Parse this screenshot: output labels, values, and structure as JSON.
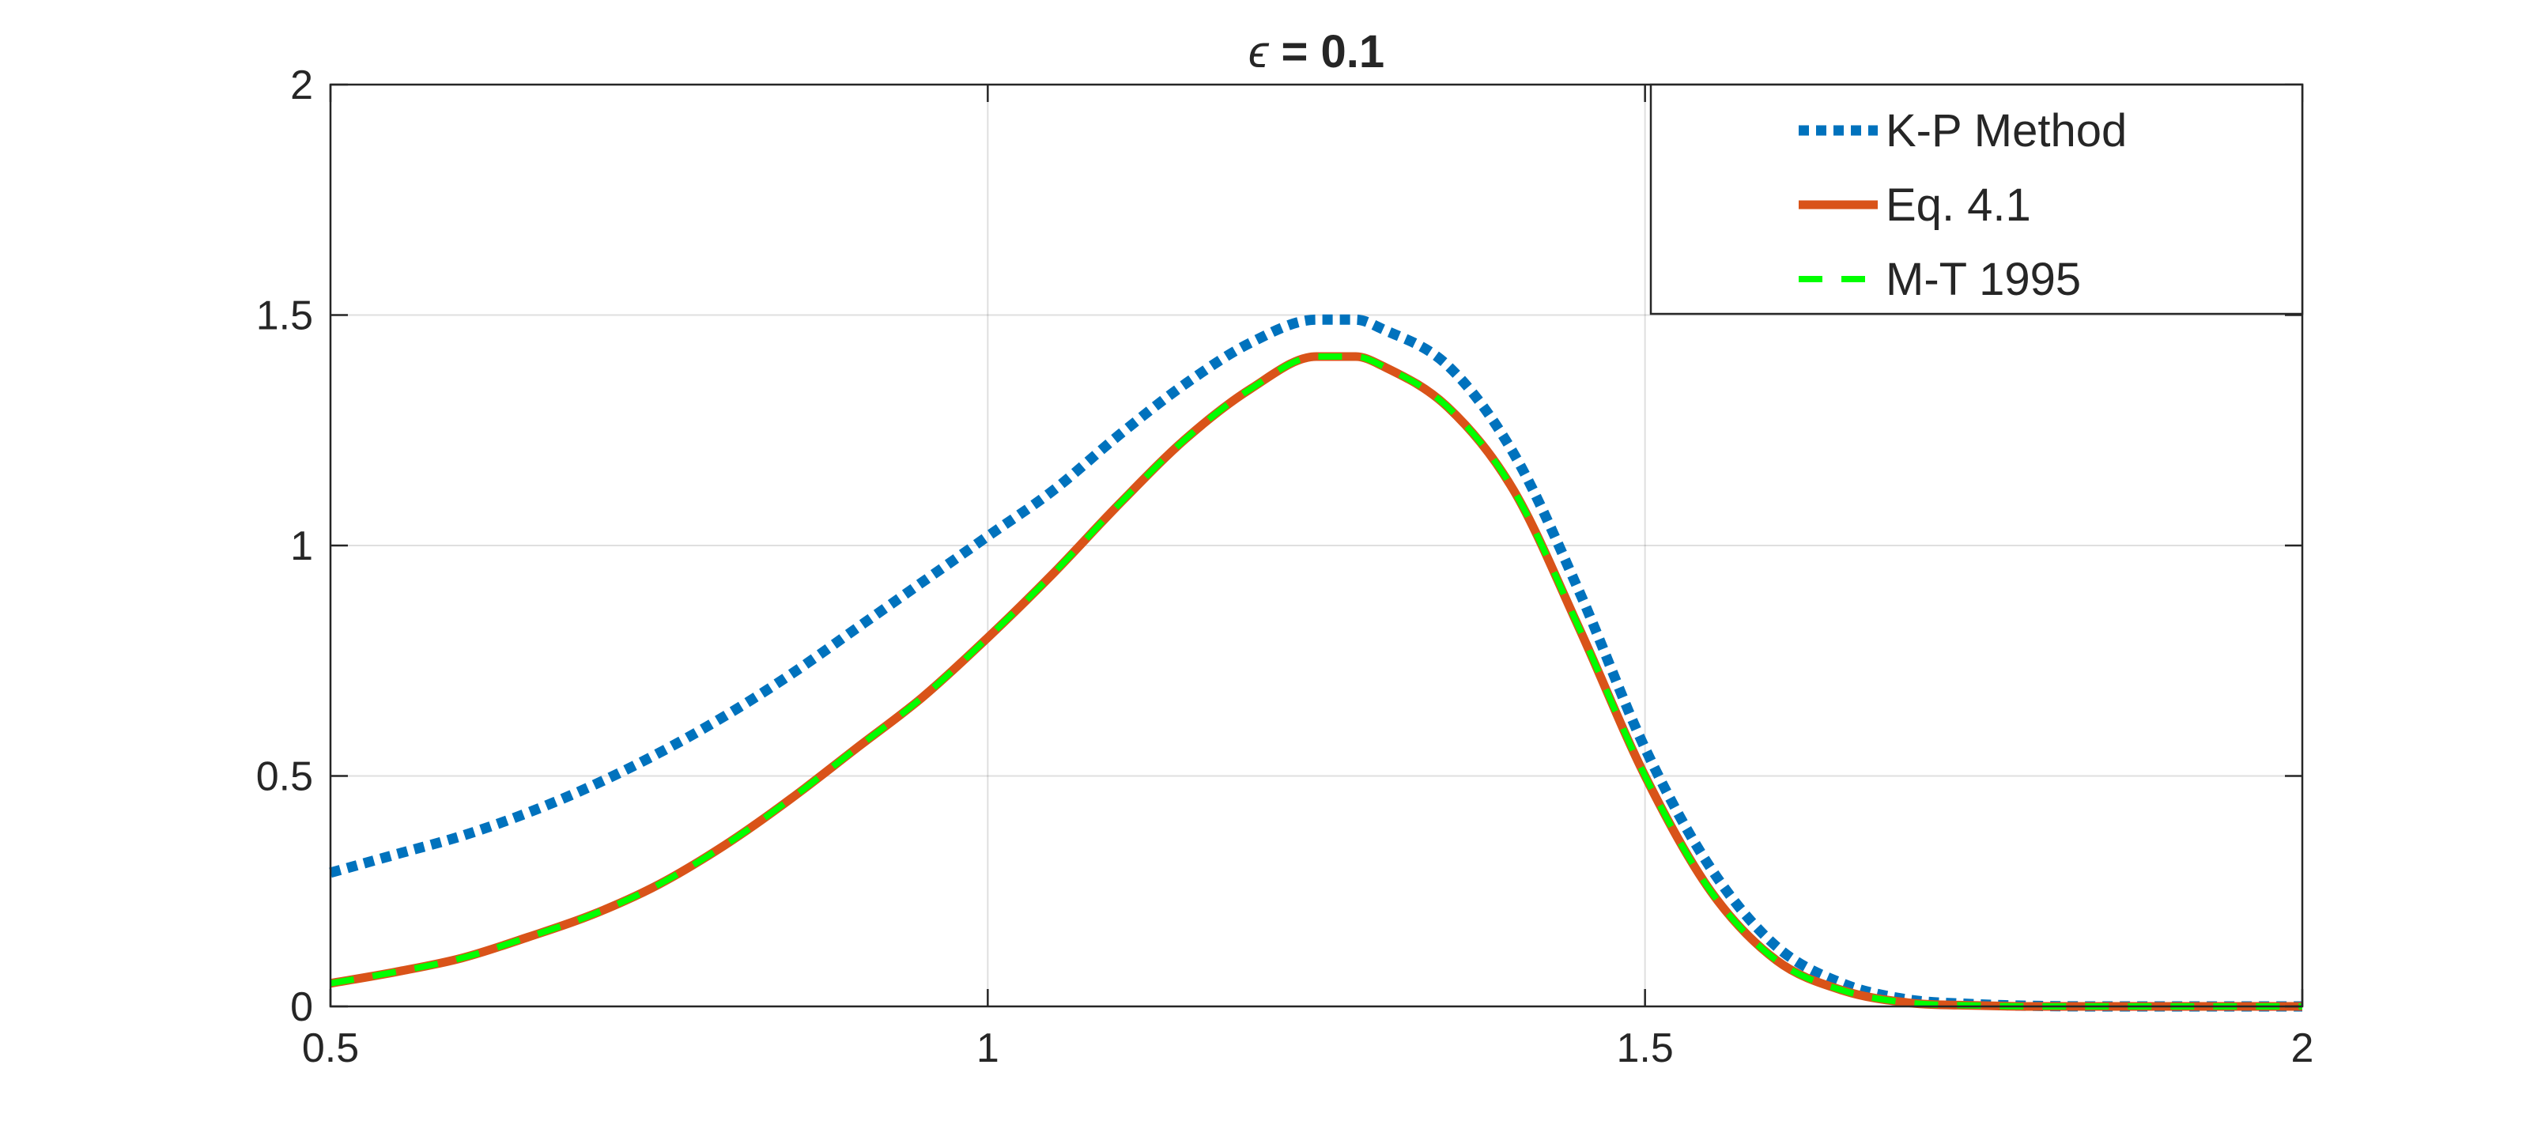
{
  "chart_data": {
    "type": "line",
    "title_symbol": "ϵ",
    "title_rest": " = 0.1",
    "xlim": [
      0.5,
      2
    ],
    "ylim": [
      0,
      2
    ],
    "xticks": [
      0.5,
      1,
      1.5,
      2
    ],
    "xtick_labels": [
      "0.5",
      "1",
      "1.5",
      "2"
    ],
    "yticks": [
      0,
      0.5,
      1,
      1.5,
      2
    ],
    "ytick_labels": [
      "0",
      "0.5",
      "1",
      "1.5",
      "2"
    ],
    "grid": true,
    "legend_position": "top-right",
    "x": [
      0.5,
      0.55,
      0.6,
      0.65,
      0.7,
      0.75,
      0.8,
      0.85,
      0.9,
      0.95,
      1.0,
      1.05,
      1.1,
      1.15,
      1.2,
      1.25,
      1.28,
      1.3,
      1.35,
      1.4,
      1.45,
      1.5,
      1.55,
      1.6,
      1.65,
      1.7,
      1.75,
      1.8,
      1.85,
      1.9,
      1.95,
      2.0
    ],
    "series": [
      {
        "name": "K-P Method",
        "color": "#0072BD",
        "style": "dotted",
        "values": [
          0.29,
          0.33,
          0.37,
          0.42,
          0.48,
          0.55,
          0.63,
          0.72,
          0.82,
          0.92,
          1.02,
          1.12,
          1.24,
          1.35,
          1.44,
          1.49,
          1.49,
          1.47,
          1.39,
          1.2,
          0.9,
          0.56,
          0.3,
          0.13,
          0.05,
          0.015,
          0.005,
          0.001,
          0.0,
          0.0,
          0.0,
          0.0
        ]
      },
      {
        "name": "Eq. 4.1",
        "color": "#D95319",
        "style": "solid",
        "values": [
          0.05,
          0.075,
          0.105,
          0.15,
          0.2,
          0.265,
          0.35,
          0.45,
          0.56,
          0.67,
          0.8,
          0.94,
          1.09,
          1.23,
          1.34,
          1.41,
          1.41,
          1.39,
          1.3,
          1.12,
          0.82,
          0.5,
          0.25,
          0.1,
          0.035,
          0.008,
          0.002,
          0.0,
          0.0,
          0.0,
          0.0,
          0.0
        ]
      },
      {
        "name": "M-T 1995",
        "color": "#00FF00",
        "style": "dashed",
        "values": [
          0.05,
          0.075,
          0.105,
          0.15,
          0.2,
          0.265,
          0.35,
          0.45,
          0.56,
          0.67,
          0.8,
          0.94,
          1.09,
          1.23,
          1.34,
          1.41,
          1.41,
          1.39,
          1.3,
          1.12,
          0.82,
          0.5,
          0.25,
          0.1,
          0.035,
          0.008,
          0.002,
          0.0,
          0.0,
          0.0,
          0.0,
          0.0
        ]
      }
    ]
  }
}
